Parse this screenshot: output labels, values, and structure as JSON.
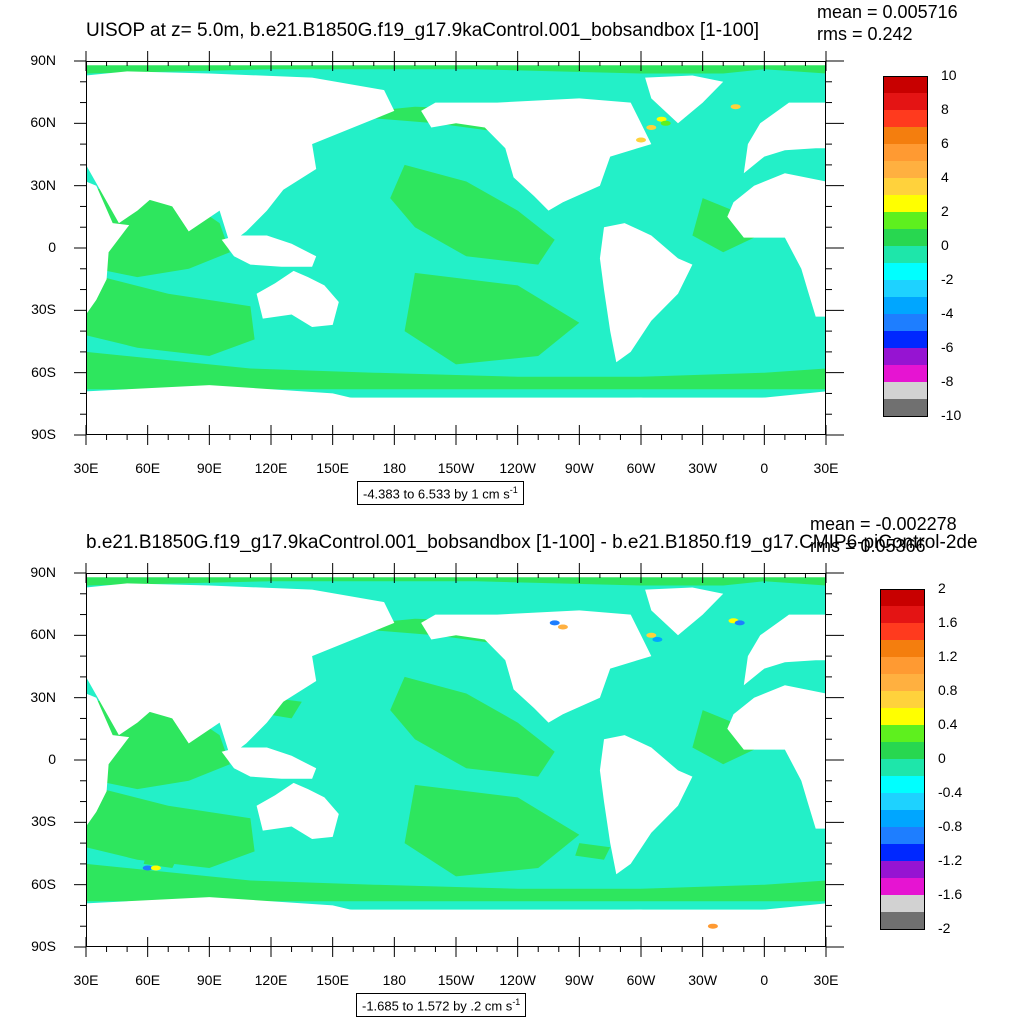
{
  "panels": [
    {
      "title": "UISOP at z=   5.0m, b.e21.B1850G.f19_g17.9kaControl.001_bobsandbox [1-100]",
      "mean": "mean = 0.005716",
      "rms": "rms = 0.242",
      "range_text": "-4.383 to 6.533 by 1 cm s",
      "range_exp": "-1",
      "colorbar_labels": [
        "10",
        "8",
        "6",
        "4",
        "2",
        "0",
        "-2",
        "-4",
        "-6",
        "-8",
        "-10"
      ]
    },
    {
      "title": "b.e21.B1850G.f19_g17.9kaControl.001_bobsandbox [1-100] - b.e21.B1850.f19_g17.CMIP6-piControl-2de",
      "mean": "mean = -0.002278",
      "rms": "rms = 0.05366",
      "range_text": "-1.685 to 1.572 by .2 cm s",
      "range_exp": "-1",
      "colorbar_labels": [
        "2",
        "1.6",
        "1.2",
        "0.8",
        "0.4",
        "0",
        "-0.4",
        "-0.8",
        "-1.2",
        "-1.6",
        "-2"
      ]
    }
  ],
  "colors": {
    "palette_top_to_bottom": [
      "#c80000",
      "#e41414",
      "#ff3a1e",
      "#f47e0e",
      "#ff9a32",
      "#ffb040",
      "#ffd23c",
      "#ffff00",
      "#5ef01e",
      "#28d750",
      "#1ee6aa",
      "#00ffff",
      "#1ed2ff",
      "#00a6ff",
      "#1e7eff",
      "#0028ff",
      "#9614d2",
      "#e614d2",
      "#d2d2d2",
      "#707070"
    ],
    "ocean_main": "#23f0c8",
    "ocean_green": "#2ee65e",
    "land": "#ffffff"
  },
  "chart_data": [
    {
      "type": "heatmap",
      "title": "UISOP at z=   5.0m, b.e21.B1850G.f19_g17.9kaControl.001_bobsandbox [1-100]",
      "xlabel": "",
      "ylabel": "",
      "x_ticks": [
        "30E",
        "60E",
        "90E",
        "120E",
        "150E",
        "180",
        "150W",
        "120W",
        "90W",
        "60W",
        "30W",
        "0",
        "30E"
      ],
      "y_ticks": [
        "90N",
        "60N",
        "30N",
        "0",
        "30S",
        "60S",
        "90S"
      ],
      "xlim": [
        30,
        390
      ],
      "ylim": [
        -90,
        90
      ],
      "colorbar": {
        "min": -10,
        "max": 10,
        "step": 1,
        "labels": [
          "10",
          "8",
          "6",
          "4",
          "2",
          "0",
          "-2",
          "-4",
          "-6",
          "-8",
          "-10"
        ]
      },
      "mean": 0.005716,
      "rms": 0.242,
      "contour_range": [
        -4.383,
        6.533
      ],
      "contour_interval": 1,
      "units": "cm s-1"
    },
    {
      "type": "heatmap",
      "title": "b.e21.B1850G.f19_g17.9kaControl.001_bobsandbox [1-100] - b.e21.B1850.f19_g17.CMIP6-piControl-2de",
      "xlabel": "",
      "ylabel": "",
      "x_ticks": [
        "30E",
        "60E",
        "90E",
        "120E",
        "150E",
        "180",
        "150W",
        "120W",
        "90W",
        "60W",
        "30W",
        "0",
        "30E"
      ],
      "y_ticks": [
        "90N",
        "60N",
        "30N",
        "0",
        "30S",
        "60S",
        "90S"
      ],
      "xlim": [
        30,
        390
      ],
      "ylim": [
        -90,
        90
      ],
      "colorbar": {
        "min": -2,
        "max": 2,
        "step": 0.2,
        "labels": [
          "2",
          "1.6",
          "1.2",
          "0.8",
          "0.4",
          "0",
          "-0.4",
          "-0.8",
          "-1.2",
          "-1.6",
          "-2"
        ]
      },
      "mean": -0.002278,
      "rms": 0.05366,
      "contour_range": [
        -1.685,
        1.572
      ],
      "contour_interval": 0.2,
      "units": "cm s-1"
    }
  ],
  "x_ticks": [
    "30E",
    "60E",
    "90E",
    "120E",
    "150E",
    "180",
    "150W",
    "120W",
    "90W",
    "60W",
    "30W",
    "0",
    "30E"
  ],
  "y_ticks": [
    "90N",
    "60N",
    "30N",
    "0",
    "30S",
    "60S",
    "90S"
  ]
}
